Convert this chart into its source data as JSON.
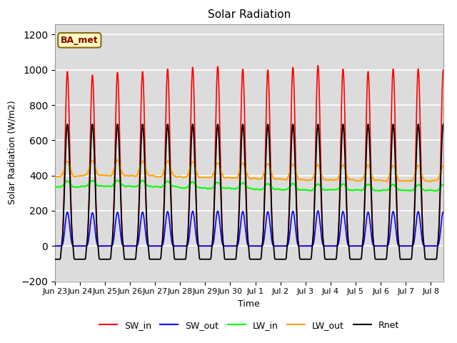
{
  "title": "Solar Radiation",
  "xlabel": "Time",
  "ylabel": "Solar Radiation (W/m2)",
  "ylim": [
    -200,
    1260
  ],
  "yticks": [
    -200,
    0,
    200,
    400,
    600,
    800,
    1000,
    1200
  ],
  "legend_labels": [
    "SW_in",
    "SW_out",
    "LW_in",
    "LW_out",
    "Rnet"
  ],
  "legend_colors": [
    "red",
    "blue",
    "lime",
    "orange",
    "black"
  ],
  "station_label": "BA_met",
  "station_label_color": "#8B0000",
  "station_box_facecolor": "#FFFFC0",
  "station_box_edgecolor": "#8B6914",
  "background_color": "#DCDCDC",
  "grid_color": "white",
  "tick_labels": [
    "Jun 23",
    "Jun 24",
    "Jun 25",
    "Jun 26",
    "Jun 27",
    "Jun 28",
    "Jun 29",
    "Jun 30",
    "Jul 1",
    "Jul 2",
    "Jul 3",
    "Jul 4",
    "Jul 5",
    "Jul 6",
    "Jul 7",
    "Jul 8"
  ]
}
